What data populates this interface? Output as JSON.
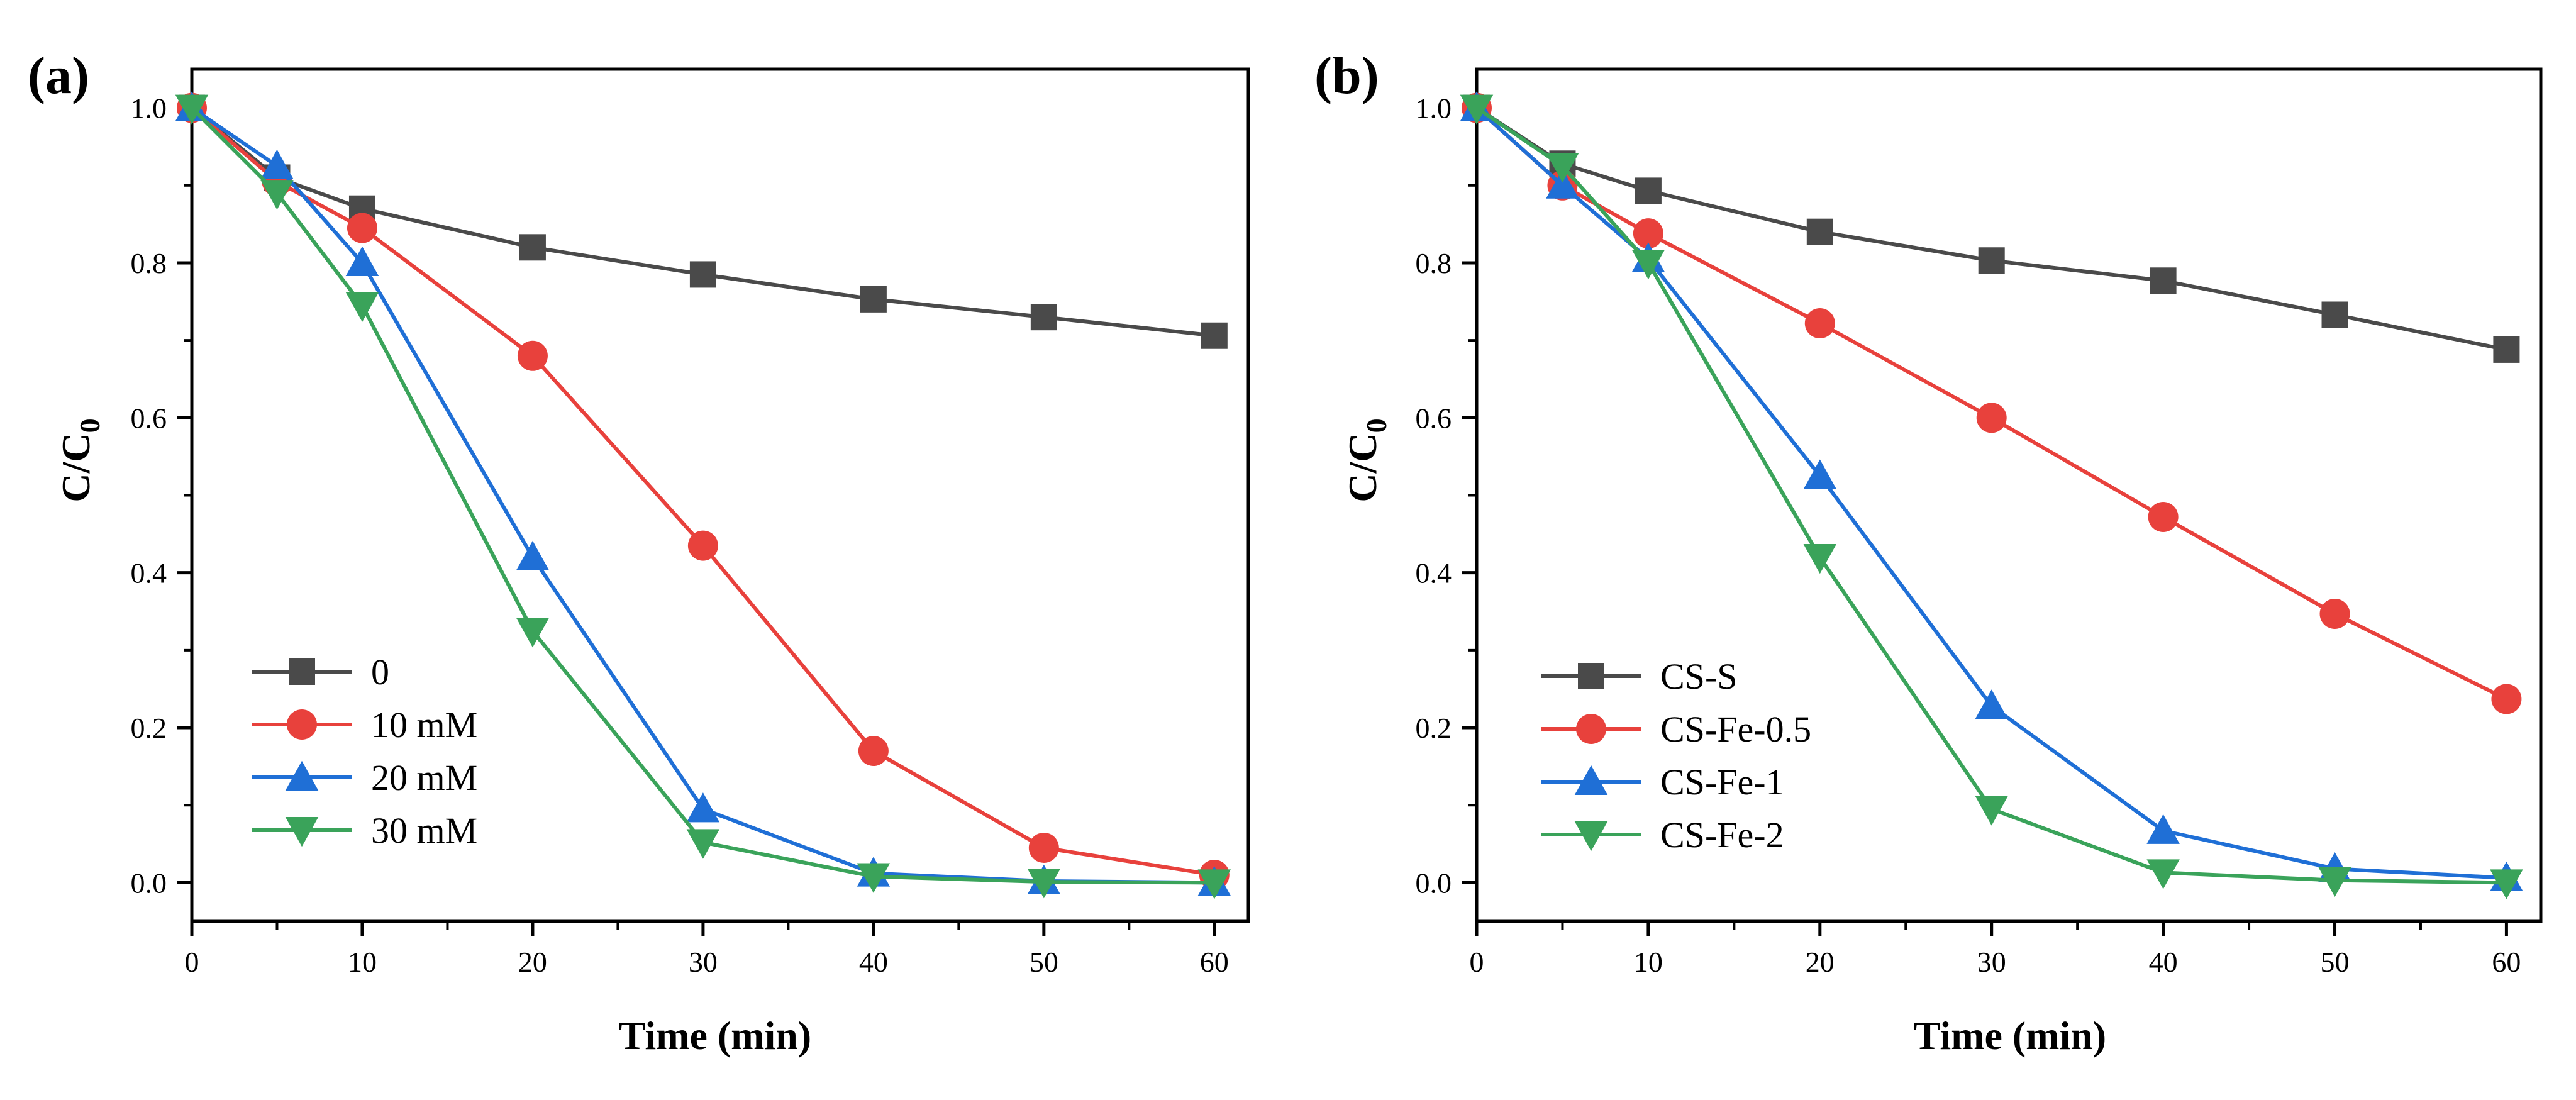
{
  "chart_data": [
    {
      "type": "line",
      "panel_label": "(a)",
      "title": "",
      "xlabel": "Time (min)",
      "ylabel_main": "C/C",
      "ylabel_sub": "0",
      "xlim": [
        0,
        62
      ],
      "ylim": [
        -0.05,
        1.05
      ],
      "x_ticks": [
        0,
        10,
        20,
        30,
        40,
        50,
        60
      ],
      "y_ticks": [
        0.0,
        0.2,
        0.4,
        0.6,
        0.8,
        1.0
      ],
      "x_tick_labels": [
        "0",
        "10",
        "20",
        "30",
        "40",
        "50",
        "60"
      ],
      "y_tick_labels": [
        "0.0",
        "0.2",
        "0.4",
        "0.6",
        "0.8",
        "1.0"
      ],
      "grid": false,
      "legend_position": "bottom-left",
      "x": [
        0,
        5,
        10,
        20,
        30,
        40,
        50,
        60
      ],
      "series": [
        {
          "name": "0",
          "color": "#4a4a4a",
          "marker": "square",
          "values": [
            1.0,
            0.91,
            0.87,
            0.82,
            0.785,
            0.753,
            0.73,
            0.706
          ]
        },
        {
          "name": "10 mM",
          "color": "#e8413c",
          "marker": "circle",
          "values": [
            1.0,
            0.905,
            0.845,
            0.68,
            0.435,
            0.17,
            0.045,
            0.01
          ]
        },
        {
          "name": "20 mM",
          "color": "#1f6fd6",
          "marker": "triangle-up",
          "values": [
            1.0,
            0.925,
            0.8,
            0.42,
            0.095,
            0.012,
            0.002,
            0.0
          ]
        },
        {
          "name": "30 mM",
          "color": "#3aa35a",
          "marker": "triangle-down",
          "values": [
            1.0,
            0.89,
            0.745,
            0.325,
            0.052,
            0.008,
            0.001,
            0.0
          ]
        }
      ]
    },
    {
      "type": "line",
      "panel_label": "(b)",
      "title": "",
      "xlabel": "Time (min)",
      "ylabel_main": "C/C",
      "ylabel_sub": "0",
      "xlim": [
        0,
        62
      ],
      "ylim": [
        -0.05,
        1.05
      ],
      "x_ticks": [
        0,
        10,
        20,
        30,
        40,
        50,
        60
      ],
      "y_ticks": [
        0.0,
        0.2,
        0.4,
        0.6,
        0.8,
        1.0
      ],
      "x_tick_labels": [
        "0",
        "10",
        "20",
        "30",
        "40",
        "50",
        "60"
      ],
      "y_tick_labels": [
        "0.0",
        "0.2",
        "0.4",
        "0.6",
        "0.8",
        "1.0"
      ],
      "grid": false,
      "legend_position": "bottom-left",
      "x": [
        0,
        5,
        10,
        20,
        30,
        40,
        50,
        60
      ],
      "series": [
        {
          "name": "CS-S",
          "color": "#4a4a4a",
          "marker": "square",
          "values": [
            1.0,
            0.928,
            0.893,
            0.84,
            0.803,
            0.777,
            0.733,
            0.688
          ]
        },
        {
          "name": "CS-Fe-0.5",
          "color": "#e8413c",
          "marker": "circle",
          "values": [
            1.0,
            0.9,
            0.838,
            0.722,
            0.6,
            0.472,
            0.347,
            0.237
          ]
        },
        {
          "name": "CS-Fe-1",
          "color": "#1f6fd6",
          "marker": "triangle-up",
          "values": [
            1.0,
            0.9,
            0.805,
            0.525,
            0.228,
            0.067,
            0.018,
            0.006
          ]
        },
        {
          "name": "CS-Fe-2",
          "color": "#3aa35a",
          "marker": "triangle-down",
          "values": [
            1.0,
            0.925,
            0.8,
            0.42,
            0.095,
            0.013,
            0.003,
            0.0
          ]
        }
      ]
    }
  ]
}
